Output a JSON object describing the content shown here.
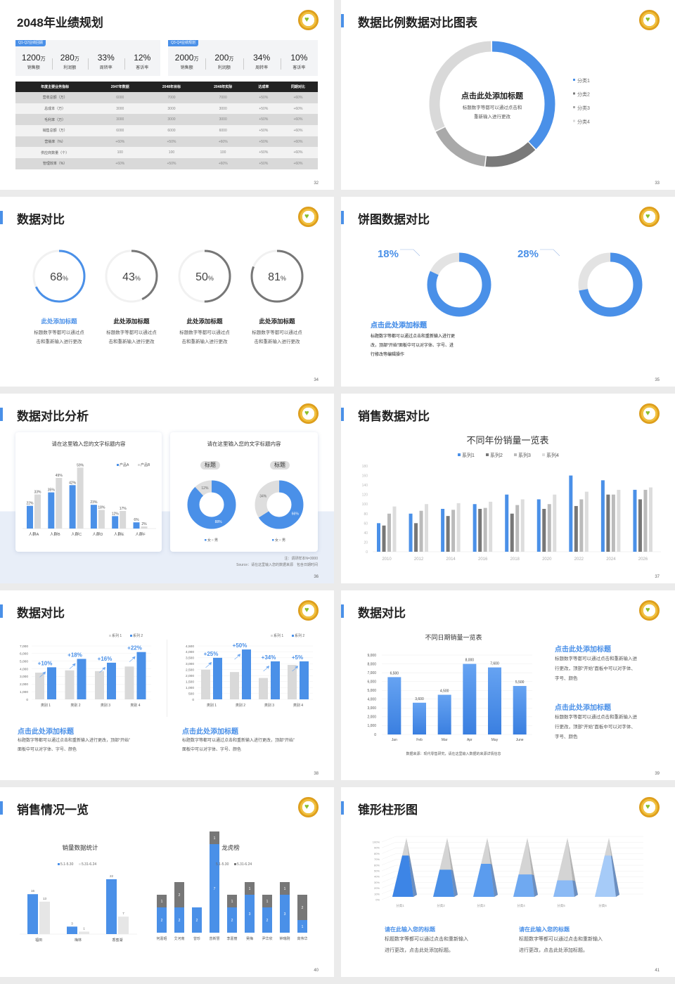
{
  "colors": {
    "blue": "#4a90e8",
    "dark_gray": "#777777",
    "mid_gray": "#aaaaaa",
    "light_gray": "#d9d9d9"
  },
  "logo_icon": "heart-emblem-icon",
  "s1": {
    "title": "2048年业绩规划",
    "page": "32",
    "card1": {
      "tag": "Q1-Q2业绩回顾",
      "items": [
        {
          "value": "1200",
          "unit": "万",
          "label": "销售额"
        },
        {
          "value": "280",
          "unit": "万",
          "label": "利润额"
        },
        {
          "value": "33%",
          "unit": "",
          "label": "周转率"
        },
        {
          "value": "12%",
          "unit": "",
          "label": "客诉率"
        }
      ]
    },
    "card2": {
      "tag": "Q3-Q4业绩规划",
      "items": [
        {
          "value": "2000",
          "unit": "万",
          "label": "销售额"
        },
        {
          "value": "200",
          "unit": "万",
          "label": "利润额"
        },
        {
          "value": "34%",
          "unit": "",
          "label": "周转率"
        },
        {
          "value": "10%",
          "unit": "",
          "label": "客诉率"
        }
      ]
    },
    "table": {
      "headers": [
        "年度主要业务指标",
        "2047年数据",
        "2048年目标",
        "2048年实际",
        "达成率",
        "同期对比"
      ],
      "rows": [
        [
          "营收总额（万）",
          "6000",
          "7000",
          "7000",
          "+50%",
          "+60%"
        ],
        [
          "总成本（万）",
          "3000",
          "3000",
          "3000",
          "+50%",
          "+60%"
        ],
        [
          "毛利率（万）",
          "3000",
          "3000",
          "3000",
          "+50%",
          "+60%"
        ],
        [
          "销售总额（万）",
          "6000",
          "6000",
          "6000",
          "+50%",
          "+60%"
        ],
        [
          "营销率（%）",
          "+60%",
          "+50%",
          "+60%",
          "+50%",
          "+60%"
        ],
        [
          "供应商数量（个）",
          "100",
          "100",
          "100",
          "+50%",
          "+60%"
        ],
        [
          "管理效率（%）",
          "+60%",
          "+50%",
          "+60%",
          "+50%",
          "+60%"
        ]
      ]
    }
  },
  "s2": {
    "title": "数据比例数据对比图表",
    "page": "33",
    "center_title": "点击此处添加标题",
    "center_desc": [
      "标题数字等都可以通过点击和",
      "重新输入进行更改"
    ],
    "chart_data": {
      "type": "pie",
      "donut": true,
      "categories": [
        "分类1",
        "分类2",
        "分类3",
        "分类4"
      ],
      "values": [
        38,
        14,
        16,
        32
      ],
      "colors": [
        "#4a90e8",
        "#7a7a7a",
        "#a9a9a9",
        "#d9d9d9"
      ],
      "legend": "right"
    }
  },
  "s3": {
    "title": "数据对比",
    "page": "34",
    "gauges": [
      {
        "value": 68,
        "unit": "%",
        "title": "此处添加标题",
        "desc": [
          "标题数字等都可以通过点",
          "击和重新输入进行更改"
        ],
        "highlight": true
      },
      {
        "value": 43,
        "unit": "%",
        "title": "此处添加标题",
        "desc": [
          "标题数字等都可以通过点",
          "击和重新输入进行更改"
        ],
        "highlight": false
      },
      {
        "value": 50,
        "unit": "%",
        "title": "此处添加标题",
        "desc": [
          "标题数字等都可以通过点",
          "击和重新输入进行更改"
        ],
        "highlight": false
      },
      {
        "value": 81,
        "unit": "%",
        "title": "此处添加标题",
        "desc": [
          "标题数字等都可以通过点",
          "击和重新输入进行更改"
        ],
        "highlight": false
      }
    ]
  },
  "s4": {
    "title": "饼图数据对比",
    "page": "35",
    "items": [
      {
        "label": "18%",
        "value": 18,
        "title": "点击此处添加标题",
        "desc": [
          "标题数字等都可以通过点击和重新输入进行更",
          "改，顶部“开始”面板中可以对字体、字号、进",
          "行修改等编辑操作"
        ]
      },
      {
        "label": "28%",
        "value": 28,
        "title": "点击此处添加标题",
        "desc": [
          "标题数字等都可以通过点击和重新输入进行更",
          "改，顶部“开始”面板中可以对字体、字号、进",
          "行修改等编辑操作"
        ]
      }
    ]
  },
  "s5": {
    "title": "数据对比分析",
    "page": "36",
    "card1": {
      "title": "请在这里输入您的文字标题内容",
      "chart_data": {
        "type": "bar",
        "categories": [
          "人群A",
          "人群B",
          "人群C",
          "人群D",
          "人群E",
          "人群F"
        ],
        "series": [
          {
            "name": "产品A",
            "values": [
              22,
              35,
              42,
              23,
              12,
              6
            ]
          },
          {
            "name": "产品B",
            "values": [
              33,
              49,
              59,
              18,
              17,
              2
            ]
          }
        ],
        "data_label_suffix": "%",
        "legend": "top-right"
      }
    },
    "card2": {
      "title": "请在这里输入您的文字标题内容",
      "donuts": [
        {
          "pill": "标题",
          "chart_data": {
            "type": "pie",
            "donut": true,
            "categories": [
              "女",
              "男"
            ],
            "values": [
              88,
              12
            ]
          }
        },
        {
          "pill": "标题",
          "chart_data": {
            "type": "pie",
            "donut": true,
            "categories": [
              "女",
              "男"
            ],
            "values": [
              66,
              34
            ]
          }
        }
      ]
    },
    "note": "注：调研样本N=3000",
    "source": "Source：请在这里输入您的数据来源　包含日期时间"
  },
  "s6": {
    "title": "销售数据对比",
    "page": "37",
    "chart_data": {
      "type": "bar",
      "title": "不同年份销量一览表",
      "categories": [
        "2010",
        "2012",
        "2014",
        "2016",
        "2018",
        "2020",
        "2022",
        "2024",
        "2026"
      ],
      "ylim": [
        0,
        180
      ],
      "yticks": [
        0,
        20,
        40,
        60,
        80,
        100,
        120,
        140,
        160,
        180
      ],
      "legend": "top",
      "series": [
        {
          "name": "系列1",
          "color": "#4a90e8",
          "values": [
            60,
            80,
            90,
            100,
            120,
            110,
            160,
            150,
            130
          ]
        },
        {
          "name": "系列2",
          "color": "#777777",
          "values": [
            55,
            60,
            75,
            90,
            80,
            90,
            96,
            120,
            110
          ]
        },
        {
          "name": "系列3",
          "color": "#bbbbbb",
          "values": [
            80,
            86,
            88,
            92,
            98,
            100,
            110,
            120,
            130
          ]
        },
        {
          "name": "系列4",
          "color": "#dddddd",
          "values": [
            95,
            100,
            102,
            105,
            110,
            120,
            126,
            130,
            135
          ]
        }
      ]
    }
  },
  "s7": {
    "title": "数据对比",
    "page": "38",
    "charts": [
      {
        "chart_data": {
          "type": "bar",
          "categories": [
            "类别 1",
            "类别 2",
            "类别 3",
            "类别 4"
          ],
          "ylim": [
            0,
            7000
          ],
          "yticks": [
            0,
            1000,
            2000,
            3000,
            4000,
            5000,
            6000,
            7000
          ],
          "series": [
            {
              "name": "系列 1",
              "values": [
                3500,
                3800,
                3700,
                4300
              ]
            },
            {
              "name": "系列 2",
              "values": [
                4200,
                5300,
                4800,
                6200
              ]
            }
          ],
          "annotations": [
            "+10%",
            "+18%",
            "+16%",
            "+22%"
          ],
          "legend": "top-right"
        },
        "title": "点击此处添加标题",
        "desc": [
          "标题数字等都可以通过点击和重新输入进行更改，顶部“开始”",
          "面板中可以对字体、字号、颜色"
        ]
      },
      {
        "chart_data": {
          "type": "bar",
          "categories": [
            "类别 1",
            "类别 2",
            "类别 3",
            "类别 4"
          ],
          "ylim": [
            0,
            4500
          ],
          "yticks": [
            0,
            500,
            1000,
            1500,
            2000,
            2500,
            3000,
            3500,
            4000,
            4500
          ],
          "series": [
            {
              "name": "系列 1",
              "values": [
                2500,
                2300,
                1800,
                2900
              ]
            },
            {
              "name": "系列 2",
              "values": [
                3500,
                4200,
                3200,
                3200
              ]
            }
          ],
          "annotations": [
            "+25%",
            "+50%",
            "+34%",
            "+5%"
          ],
          "legend": "top-right"
        },
        "title": "点击此处添加标题",
        "desc": [
          "标题数字等都可以通过点击和重新输入进行更改，顶部“开始”",
          "面板中可以对字体、字号、颜色"
        ]
      }
    ]
  },
  "s8": {
    "title": "数据对比",
    "page": "39",
    "chart_data": {
      "type": "bar",
      "title": "不同日期销量一览表",
      "categories": [
        "Jan",
        "Feb",
        "Mar",
        "Apr",
        "May",
        "June"
      ],
      "values": [
        6500,
        3600,
        4500,
        8000,
        7600,
        5500
      ],
      "labels": [
        "6,500",
        "3,600",
        "4,500",
        "8,000",
        "7,600",
        "5,500"
      ],
      "ylim": [
        0,
        9000
      ],
      "yticks": [
        0,
        1000,
        2000,
        3000,
        4000,
        5000,
        6000,
        7000,
        8000,
        9000
      ]
    },
    "source": "数据来源：现代零售研究，请在这里输入数据的来源详情信息",
    "blocks": [
      {
        "title": "点击此处添加标题",
        "desc": [
          "标题数字等都可以通过点击和重新输入进",
          "行更改，顶部“开始”面板中可以对字体、",
          "字号、颜色"
        ]
      },
      {
        "title": "点击此处添加标题",
        "desc": [
          "标题数字等都可以通过点击和重新输入进",
          "行更改，顶部“开始”面板中可以对字体、",
          "字号、颜色"
        ]
      }
    ]
  },
  "s9": {
    "title": "销售情况一览",
    "page": "40",
    "left": {
      "chart_data": {
        "type": "bar",
        "title": "销量数据统计",
        "categories": [
          "福田",
          "梅林",
          "香蜜湖"
        ],
        "series": [
          {
            "name": "5.1-5.30",
            "color": "#4a90e8",
            "values": [
              16,
              3,
              22
            ]
          },
          {
            "name": "5.31-6.24",
            "color": "#e6e6e6",
            "values": [
              13,
              1,
              7
            ]
          }
        ],
        "legend": "top"
      }
    },
    "right": {
      "chart_data": {
        "type": "bar",
        "stacked": true,
        "title": "龙虎榜",
        "categories": [
          "何嘉昭",
          "艾河南",
          "曾珍",
          "曾新慧",
          "李嘉丽",
          "吴梅",
          "尹华欣",
          "钟瑞刚",
          "高伟华"
        ],
        "series": [
          {
            "name": "5.1-5.30",
            "color": "#4a90e8",
            "values": [
              2,
              2,
              2,
              7,
              2,
              3,
              2,
              3,
              1
            ]
          },
          {
            "name": "5.31-6.24",
            "color": "#777777",
            "values": [
              1,
              2,
              0,
              1,
              1,
              1,
              1,
              1,
              2
            ]
          }
        ],
        "legend": "top"
      }
    }
  },
  "s10": {
    "title": "锥形柱形图",
    "page": "41",
    "chart_data": {
      "type": "bar",
      "shape": "pyramid",
      "categories": [
        "分类1",
        "分类2",
        "分类3",
        "分类4",
        "分类5",
        "分类6"
      ],
      "values": [
        70,
        46,
        56,
        38,
        28,
        70
      ],
      "ylim": [
        0,
        100
      ],
      "yticks": [
        "0%",
        "10%",
        "20%",
        "30%",
        "40%",
        "50%",
        "60%",
        "70%",
        "80%",
        "90%",
        "100%"
      ]
    },
    "blocks": [
      {
        "title": "请在此输入您的标题",
        "desc": [
          "标题数字等都可以通过点击和重新输入",
          "进行更改，点击此处添加标题。"
        ]
      },
      {
        "title": "请在此输入您的标题",
        "desc": [
          "标题数字等都可以通过点击和重新输入",
          "进行更改，点击此处添加标题。"
        ]
      }
    ]
  }
}
